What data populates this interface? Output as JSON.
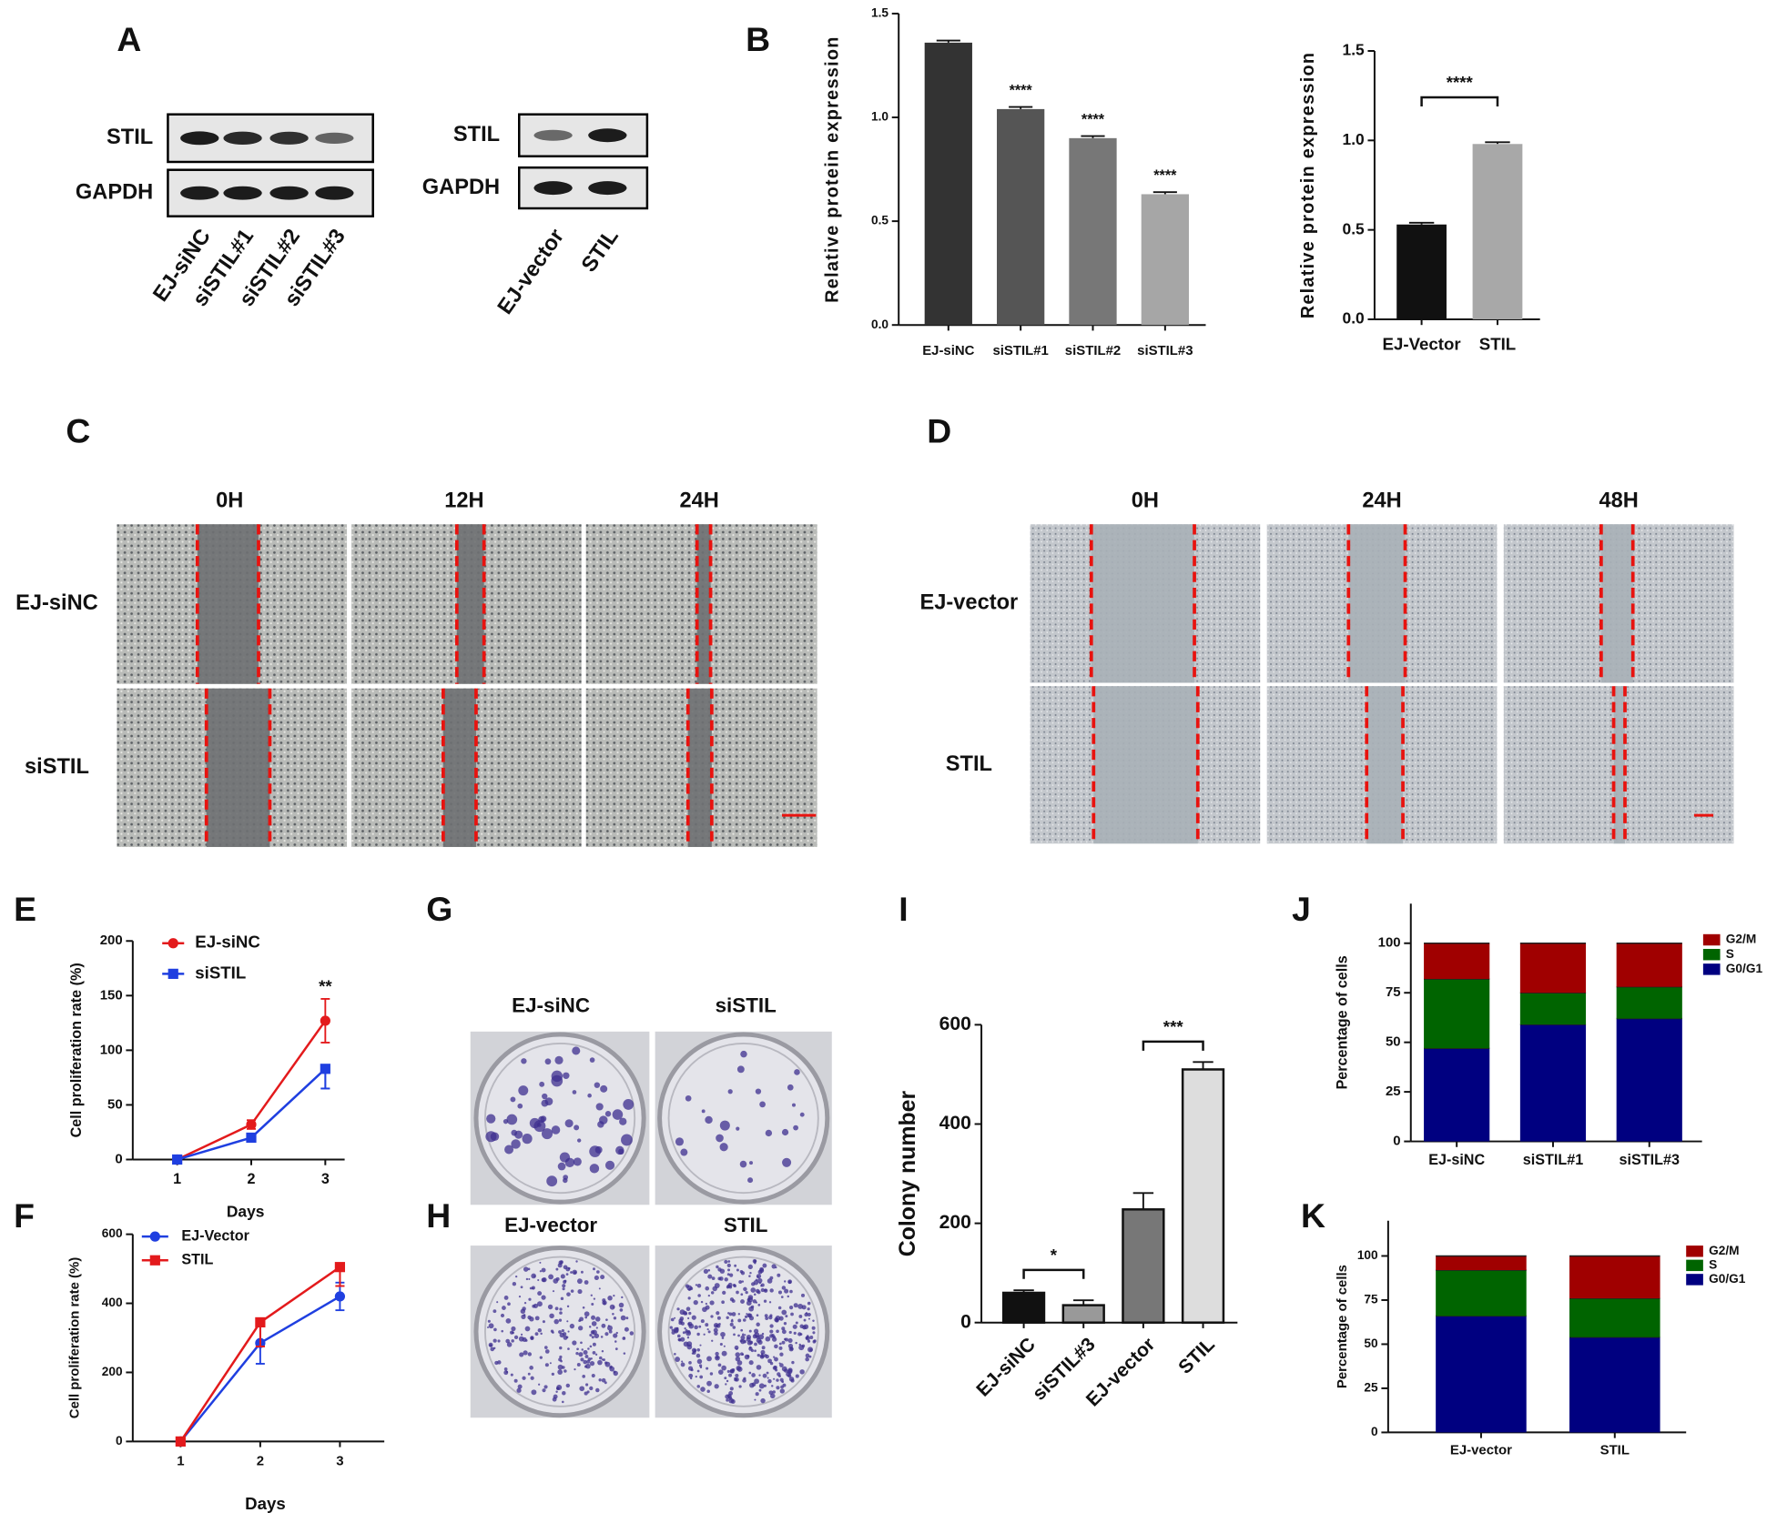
{
  "panel_labels": [
    "A",
    "B",
    "C",
    "D",
    "E",
    "F",
    "G",
    "H",
    "I",
    "J",
    "K"
  ],
  "blots": [
    {
      "rows": [
        "STIL",
        "GAPDH"
      ],
      "lanes": [
        "EJ-siNC",
        "siSTIL#1",
        "siSTIL#2",
        "siSTIL#3"
      ]
    },
    {
      "rows": [
        "STIL",
        "GAPDH"
      ],
      "lanes": [
        "EJ-vector",
        "STIL"
      ]
    }
  ],
  "wound": [
    {
      "times": [
        "0H",
        "12H",
        "24H"
      ],
      "groups": [
        "EJ-siNC",
        "siSTIL"
      ]
    },
    {
      "times": [
        "0H",
        "24H",
        "48H"
      ],
      "groups": [
        "EJ-vector",
        "STIL"
      ]
    }
  ],
  "colony": [
    [
      "EJ-siNC",
      "siSTIL"
    ],
    [
      "EJ-vector",
      "STIL"
    ]
  ],
  "chart_data": [
    {
      "type": "bar",
      "ylabel": "Relative protein expression",
      "categories": [
        "EJ-siNC",
        "siSTIL#1",
        "siSTIL#2",
        "siSTIL#3"
      ],
      "values": [
        1.36,
        1.04,
        0.9,
        0.63
      ],
      "errors": [
        0.01,
        0.01,
        0.01,
        0.01
      ],
      "colors": [
        "#333333",
        "#555555",
        "#777777",
        "#a6a6a6"
      ],
      "ylim": [
        0,
        1.5
      ],
      "yticks": [
        {
          "value": 0,
          "label": "0.0"
        },
        0.5,
        {
          "value": 1,
          "label": "1.0"
        },
        1.5
      ],
      "annotations": [
        "****",
        "****",
        "****"
      ]
    },
    {
      "type": "bar",
      "ylabel": "Relative protein expression",
      "categories": [
        "EJ-Vector",
        "STIL"
      ],
      "values": [
        0.53,
        0.98
      ],
      "errors": [
        0.01,
        0.01
      ],
      "colors": [
        "#111111",
        "#a8a8a8"
      ],
      "ylim": [
        0,
        1.5
      ],
      "yticks": [
        {
          "value": 0,
          "label": "0.0"
        },
        0.5,
        {
          "value": 1,
          "label": "1.0"
        },
        1.5
      ],
      "annotations": [
        "****"
      ]
    },
    {
      "type": "line",
      "xlabel": "Days",
      "ylabel": "Cell proliferation rate (%)",
      "x": [
        1,
        2,
        3
      ],
      "xlim": [
        0.4,
        3.2
      ],
      "xticks": [
        1,
        2,
        3
      ],
      "ylim": [
        0,
        200
      ],
      "yticks": [
        0,
        50,
        100,
        150,
        200
      ],
      "legend": "upper left",
      "series": [
        {
          "name": "EJ-siNC",
          "color": "#e31a1c",
          "marker": "circle",
          "values": [
            0,
            32,
            127
          ],
          "errors": [
            0,
            4,
            20
          ]
        },
        {
          "name": "siSTIL",
          "color": "#1f3fe0",
          "marker": "square",
          "values": [
            0,
            20,
            83
          ],
          "errors": [
            0,
            3,
            18
          ]
        }
      ],
      "annotations": [
        "**"
      ]
    },
    {
      "type": "line",
      "xlabel": "Days",
      "ylabel": "Cell proliferation rate (%)",
      "x": [
        1,
        2,
        3
      ],
      "xlim": [
        0.4,
        3.5
      ],
      "xticks": [
        1,
        2,
        3
      ],
      "ylim": [
        0,
        600
      ],
      "yticks": [
        0,
        200,
        400,
        600
      ],
      "legend": "upper left",
      "series": [
        {
          "name": "EJ-Vector",
          "color": "#1f3fe0",
          "marker": "circle",
          "values": [
            0,
            285,
            420
          ],
          "errors": [
            0,
            60,
            40
          ]
        },
        {
          "name": "STIL",
          "color": "#e31a1c",
          "marker": "square",
          "values": [
            0,
            345,
            505
          ],
          "errors": [
            0,
            70,
            55
          ]
        }
      ],
      "annotations": []
    },
    {
      "type": "bar",
      "ylabel": "Colony number",
      "categories": [
        "EJ-siNC",
        "siSTIL#3",
        "EJ-vector",
        "STIL"
      ],
      "values": [
        60,
        35,
        228,
        510
      ],
      "errors": [
        5,
        10,
        33,
        15
      ],
      "colors": [
        "#111111",
        "#999999",
        "#777777",
        "#dddddd"
      ],
      "ylim": [
        0,
        600
      ],
      "yticks": [
        0,
        200,
        400,
        600
      ],
      "annotations": [
        "*",
        "***"
      ]
    },
    {
      "type": "stacked_bar",
      "ylabel": "Percentage of cells",
      "categories": [
        "EJ-siNC",
        "siSTIL#1",
        "siSTIL#3"
      ],
      "ylim": [
        0,
        120
      ],
      "yticks": [
        0,
        25,
        50,
        75,
        100
      ],
      "series": [
        {
          "name": "G0/G1",
          "color": "#000080",
          "values": [
            47,
            59,
            62
          ]
        },
        {
          "name": "S",
          "color": "#006400",
          "values": [
            35,
            16,
            16
          ]
        },
        {
          "name": "G2/M",
          "color": "#a00000",
          "values": [
            18,
            25,
            22
          ]
        }
      ]
    },
    {
      "type": "stacked_bar",
      "ylabel": "Percentage of cells",
      "categories": [
        "EJ-vector",
        "STIL"
      ],
      "ylim": [
        0,
        120
      ],
      "yticks": [
        0,
        25,
        50,
        75,
        100
      ],
      "series": [
        {
          "name": "G0/G1",
          "color": "#000080",
          "values": [
            66,
            54
          ]
        },
        {
          "name": "S",
          "color": "#006400",
          "values": [
            26,
            22
          ]
        },
        {
          "name": "G2/M",
          "color": "#a00000",
          "values": [
            8,
            24
          ]
        }
      ]
    }
  ]
}
